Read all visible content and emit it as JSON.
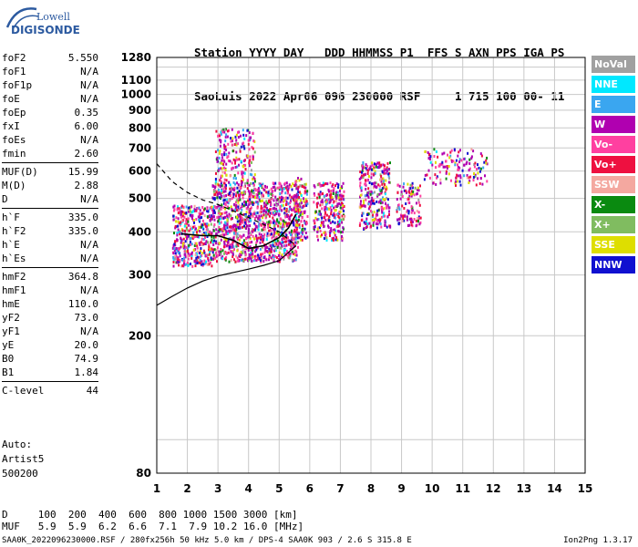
{
  "logo": {
    "line1": "Lowell",
    "line2": "DIGISONDE"
  },
  "header": {
    "line1": "Station YYYY DAY   DDD HHMMSS P1  FFS S AXN PPS IGA PS",
    "line2": "SaoLuis 2022 Apr06 096 230000 RSF     1 715 100 00- 11"
  },
  "params": [
    {
      "name": "foF2",
      "value": "5.550"
    },
    {
      "name": "foF1",
      "value": "N/A"
    },
    {
      "name": "foF1p",
      "value": "N/A"
    },
    {
      "name": "foE",
      "value": "N/A"
    },
    {
      "name": "foEp",
      "value": "0.35"
    },
    {
      "name": "fxI",
      "value": "6.00"
    },
    {
      "name": "foEs",
      "value": "N/A"
    },
    {
      "name": "fmin",
      "value": "2.60"
    },
    {
      "name": "MUF(D)",
      "value": "15.99",
      "sep": true
    },
    {
      "name": "M(D)",
      "value": "2.88"
    },
    {
      "name": "D",
      "value": "N/A"
    },
    {
      "name": "h`F",
      "value": "335.0",
      "sep": true
    },
    {
      "name": "h`F2",
      "value": "335.0"
    },
    {
      "name": "h`E",
      "value": "N/A"
    },
    {
      "name": "h`Es",
      "value": "N/A"
    },
    {
      "name": "hmF2",
      "value": "364.8",
      "sep": true
    },
    {
      "name": "hmF1",
      "value": "N/A"
    },
    {
      "name": "hmE",
      "value": "110.0"
    },
    {
      "name": "yF2",
      "value": "73.0"
    },
    {
      "name": "yF1",
      "value": "N/A"
    },
    {
      "name": "yE",
      "value": "20.0"
    },
    {
      "name": "B0",
      "value": "74.9"
    },
    {
      "name": "B1",
      "value": "1.84"
    },
    {
      "name": "C-level",
      "value": "44",
      "sep": true
    }
  ],
  "auto": {
    "line1": "Auto:",
    "line2": "Artist5",
    "line3": "500200"
  },
  "bottom": {
    "d_row": "D     100  200  400  600  800 1000 1500 3000 [km]",
    "muf_row": "MUF   5.9  5.9  6.2  6.6  7.1  7.9 10.2 16.0 [MHz]",
    "footer": "SAA0K_2022096230000.RSF / 280fx256h 50 kHz 5.0 km / DPS-4 SAA0K 903 / 2.6 S 315.8 E",
    "version": "Ion2Png 1.3.17"
  },
  "legend": [
    {
      "label": "NoVal",
      "color": "#a0a0a0"
    },
    {
      "label": "NNE",
      "color": "#00e8ff"
    },
    {
      "label": "E",
      "color": "#3aa6f0"
    },
    {
      "label": "W",
      "color": "#b000b0"
    },
    {
      "label": "Vo-",
      "color": "#ff40a0"
    },
    {
      "label": "Vo+",
      "color": "#ee1040"
    },
    {
      "label": "SSW",
      "color": "#f4a8a0"
    },
    {
      "label": "X-",
      "color": "#0a8a10"
    },
    {
      "label": "X+",
      "color": "#80bc60"
    },
    {
      "label": "SSE",
      "color": "#dede00"
    },
    {
      "label": "NNW",
      "color": "#1010d0"
    }
  ],
  "chart_data": {
    "type": "scatter",
    "xlim": [
      1,
      15
    ],
    "ylim": [
      80,
      1280
    ],
    "y_scale": "log",
    "x_ticks": [
      "1",
      "2",
      "3",
      "4",
      "5",
      "6",
      "7",
      "8",
      "9",
      "10",
      "11",
      "12",
      "13",
      "14",
      "15"
    ],
    "y_ticks": [
      "80",
      "200",
      "300",
      "400",
      "500",
      "600",
      "700",
      "800",
      "900",
      "1000",
      "1100",
      "1280"
    ],
    "grid": true,
    "clusters": [
      {
        "x": [
          1.5,
          2.8
        ],
        "y": [
          320,
          480
        ],
        "density": 0.85
      },
      {
        "x": [
          2.8,
          5.6
        ],
        "y": [
          330,
          560
        ],
        "density": 0.9
      },
      {
        "x": [
          2.9,
          4.2
        ],
        "y": [
          560,
          800
        ],
        "density": 0.45
      },
      {
        "x": [
          5.5,
          5.9
        ],
        "y": [
          380,
          580
        ],
        "density": 0.8
      },
      {
        "x": [
          6.1,
          7.1
        ],
        "y": [
          380,
          560
        ],
        "density": 0.75
      },
      {
        "x": [
          7.6,
          8.6
        ],
        "y": [
          410,
          640
        ],
        "density": 0.7
      },
      {
        "x": [
          8.8,
          9.6
        ],
        "y": [
          420,
          560
        ],
        "density": 0.55
      },
      {
        "x": [
          9.7,
          11.8
        ],
        "y": [
          550,
          700
        ],
        "density": 0.3
      }
    ],
    "virtual_height_curve": {
      "x": [
        1.8,
        2.5,
        3.0,
        3.5,
        4.0,
        4.5,
        5.0,
        5.3,
        5.55
      ],
      "y": [
        395,
        390,
        390,
        378,
        358,
        365,
        385,
        410,
        450
      ]
    },
    "profile_curve_solid": {
      "x": [
        1.0,
        1.5,
        2.0,
        2.5,
        3.0,
        3.5,
        4.0,
        4.5,
        5.0,
        5.55
      ],
      "y": [
        245,
        260,
        275,
        288,
        298,
        305,
        312,
        320,
        330,
        364.8
      ]
    },
    "profile_curve_dashed": {
      "x": [
        1.0,
        1.5,
        2.0,
        2.5,
        3.0,
        3.5,
        4.0,
        4.5,
        5.0,
        5.55
      ],
      "y": [
        630,
        560,
        520,
        495,
        480,
        460,
        440,
        420,
        400,
        364.8
      ]
    }
  }
}
